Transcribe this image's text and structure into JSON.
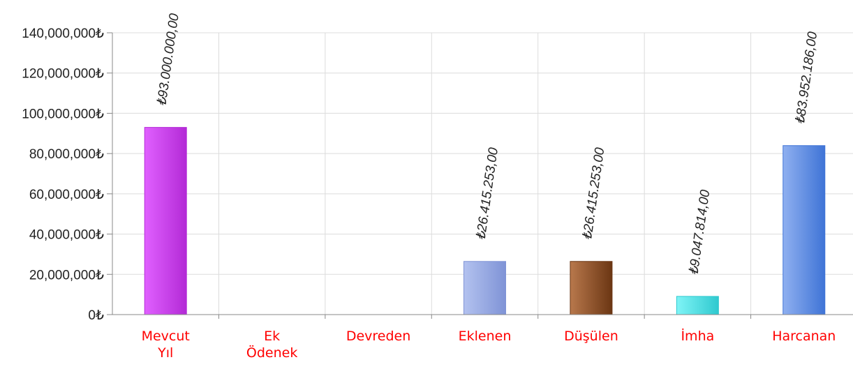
{
  "chart_data": {
    "type": "bar",
    "categories": [
      [
        "Mevcut",
        "Yıl"
      ],
      [
        "Ek",
        "Ödenek"
      ],
      [
        "Devreden"
      ],
      [
        "Eklenen"
      ],
      [
        "Düşülen"
      ],
      [
        "İmha"
      ],
      [
        "Harcanan"
      ]
    ],
    "values": [
      93000000,
      0,
      0,
      26415253,
      26415253,
      9047814,
      83952186
    ],
    "data_labels": [
      "₺93.000.000,00",
      "",
      "",
      "₺26.415.253,00",
      "₺26.415.253,00",
      "₺9.047.814,00",
      "₺83.952.186,00"
    ],
    "bar_colors": [
      [
        "#b32ad6",
        "#e060ff"
      ],
      [
        "#cccccc",
        "#cccccc"
      ],
      [
        "#cccccc",
        "#cccccc"
      ],
      [
        "#7f93d6",
        "#b3c2ef"
      ],
      [
        "#6b3613",
        "#b8784c"
      ],
      [
        "#2fc9cf",
        "#7ff4f6"
      ],
      [
        "#3f74d6",
        "#8fb0f0"
      ]
    ],
    "ylim": [
      0,
      140000000
    ],
    "yticks": [
      0,
      20000000,
      40000000,
      60000000,
      80000000,
      100000000,
      120000000,
      140000000
    ],
    "ytick_labels": [
      "0₺",
      "20,000,000₺",
      "40,000,000₺",
      "60,000,000₺",
      "80,000,000₺",
      "100,000,000₺",
      "120,000,000₺",
      "140,000,000₺"
    ],
    "category_label_color": "#ff0000",
    "grid": true,
    "title": "",
    "xlabel": "",
    "ylabel": ""
  }
}
